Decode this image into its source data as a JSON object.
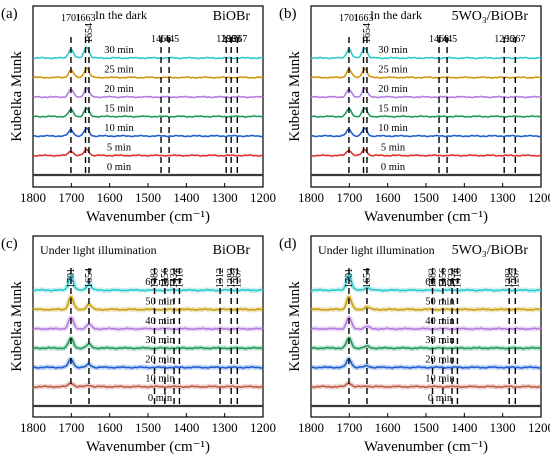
{
  "chart_data": [
    {
      "panel_label": "(a)",
      "condition": "In the dark",
      "sample": "BiOBr",
      "type": "line",
      "xlabel": "Wavenumber (cm⁻¹)",
      "ylabel": "Kubelka Munk",
      "xlim": [
        1800,
        1200
      ],
      "x_ticks": [
        1800,
        1700,
        1600,
        1500,
        1400,
        1300,
        1200
      ],
      "peaks": [
        1701,
        1663,
        1654,
        1466,
        1445,
        1296,
        1283,
        1267
      ],
      "series": [
        {
          "name": "0 min",
          "color": "#3a3a3a",
          "peaks": [
            [
              1701,
              0.0
            ],
            [
              1660,
              0.0
            ]
          ]
        },
        {
          "name": "5 min",
          "color": "#e0302c",
          "peaks": [
            [
              1701,
              0.3
            ],
            [
              1660,
              0.4
            ]
          ]
        },
        {
          "name": "10 min",
          "color": "#1f5fd0",
          "peaks": [
            [
              1701,
              0.4
            ],
            [
              1660,
              0.5
            ]
          ]
        },
        {
          "name": "15 min",
          "color": "#1d9a5c",
          "peaks": [
            [
              1701,
              0.45
            ],
            [
              1660,
              0.55
            ]
          ]
        },
        {
          "name": "20 min",
          "color": "#b37be0",
          "peaks": [
            [
              1701,
              0.5
            ],
            [
              1660,
              0.6
            ]
          ]
        },
        {
          "name": "25 min",
          "color": "#d4950a",
          "peaks": [
            [
              1701,
              0.5
            ],
            [
              1660,
              0.65
            ]
          ]
        },
        {
          "name": "30 min",
          "color": "#2ec8cc",
          "peaks": [
            [
              1701,
              0.6
            ],
            [
              1660,
              0.75
            ]
          ]
        }
      ]
    },
    {
      "panel_label": "(b)",
      "condition": "In the dark",
      "sample": "5WO₃/BiOBr",
      "type": "line",
      "xlabel": "Wavenumber (cm⁻¹)",
      "ylabel": "Kubelka Munk",
      "xlim": [
        1800,
        1200
      ],
      "x_ticks": [
        1800,
        1700,
        1600,
        1500,
        1400,
        1300,
        1200
      ],
      "peaks": [
        1701,
        1663,
        1654,
        1466,
        1445,
        1296,
        1267
      ],
      "series": [
        {
          "name": "0 min",
          "color": "#3a3a3a",
          "peaks": [
            [
              1701,
              0.0
            ],
            [
              1660,
              0.0
            ]
          ]
        },
        {
          "name": "5 min",
          "color": "#e0302c",
          "peaks": [
            [
              1701,
              0.35
            ],
            [
              1660,
              0.4
            ]
          ]
        },
        {
          "name": "10 min",
          "color": "#1f5fd0",
          "peaks": [
            [
              1701,
              0.45
            ],
            [
              1660,
              0.5
            ]
          ]
        },
        {
          "name": "15 min",
          "color": "#1d9a5c",
          "peaks": [
            [
              1701,
              0.5
            ],
            [
              1660,
              0.55
            ]
          ]
        },
        {
          "name": "20 min",
          "color": "#b37be0",
          "peaks": [
            [
              1701,
              0.5
            ],
            [
              1660,
              0.6
            ]
          ]
        },
        {
          "name": "25 min",
          "color": "#d4950a",
          "peaks": [
            [
              1701,
              0.55
            ],
            [
              1660,
              0.6
            ]
          ]
        },
        {
          "name": "30 min",
          "color": "#2ec8cc",
          "peaks": [
            [
              1701,
              0.6
            ],
            [
              1660,
              0.7
            ]
          ]
        }
      ]
    },
    {
      "panel_label": "(c)",
      "condition": "Under light illumination",
      "sample": "BiOBr",
      "type": "line",
      "xlabel": "Wavenumber (cm⁻¹)",
      "ylabel": "Kubelka Munk",
      "xlim": [
        1800,
        1200
      ],
      "x_ticks": [
        1800,
        1700,
        1600,
        1500,
        1400,
        1300,
        1200
      ],
      "peaks": [
        1701,
        1654,
        1483,
        1456,
        1432,
        1418,
        1312,
        1283,
        1267
      ],
      "series": [
        {
          "name": "0 min",
          "color": "#3a3a3a",
          "peaks": [
            [
              1701,
              0.0
            ],
            [
              1654,
              0.0
            ]
          ]
        },
        {
          "name": "10 min",
          "color": "#c05a48",
          "peaks": [
            [
              1701,
              0.25
            ],
            [
              1654,
              0.1
            ]
          ]
        },
        {
          "name": "20 min",
          "color": "#1f5fd0",
          "peaks": [
            [
              1701,
              0.55
            ],
            [
              1654,
              0.2
            ]
          ]
        },
        {
          "name": "30 min",
          "color": "#1d9a5c",
          "peaks": [
            [
              1701,
              0.65
            ],
            [
              1654,
              0.25
            ]
          ]
        },
        {
          "name": "40 min",
          "color": "#b37be0",
          "peaks": [
            [
              1701,
              0.75
            ],
            [
              1654,
              0.3
            ]
          ]
        },
        {
          "name": "50 min",
          "color": "#c8a010",
          "peaks": [
            [
              1701,
              0.85
            ],
            [
              1654,
              0.35
            ]
          ]
        },
        {
          "name": "60 min",
          "color": "#2ec8cc",
          "peaks": [
            [
              1701,
              1.0
            ],
            [
              1654,
              0.4
            ]
          ]
        }
      ]
    },
    {
      "panel_label": "(d)",
      "condition": "Under light illumination",
      "sample": "5WO₃/BiOBr",
      "type": "line",
      "xlabel": "Wavenumber (cm⁻¹)",
      "ylabel": "Kubelka Munk",
      "xlim": [
        1800,
        1200
      ],
      "x_ticks": [
        1800,
        1700,
        1600,
        1500,
        1400,
        1300,
        1200
      ],
      "peaks": [
        1701,
        1654,
        1483,
        1456,
        1432,
        1418,
        1283,
        1267
      ],
      "series": [
        {
          "name": "0 min",
          "color": "#3a3a3a",
          "peaks": [
            [
              1701,
              0.0
            ],
            [
              1654,
              0.0
            ]
          ]
        },
        {
          "name": "10 min",
          "color": "#c05a48",
          "peaks": [
            [
              1701,
              0.25
            ],
            [
              1654,
              0.05
            ]
          ]
        },
        {
          "name": "20 min",
          "color": "#1f5fd0",
          "peaks": [
            [
              1701,
              0.55
            ],
            [
              1654,
              0.1
            ]
          ]
        },
        {
          "name": "30 min",
          "color": "#1d9a5c",
          "peaks": [
            [
              1701,
              0.65
            ],
            [
              1654,
              0.12
            ]
          ]
        },
        {
          "name": "40 min",
          "color": "#b37be0",
          "peaks": [
            [
              1701,
              0.75
            ],
            [
              1654,
              0.15
            ]
          ]
        },
        {
          "name": "50 min",
          "color": "#c8a010",
          "peaks": [
            [
              1701,
              0.85
            ],
            [
              1654,
              0.18
            ]
          ]
        },
        {
          "name": "60 min",
          "color": "#2ec8cc",
          "peaks": [
            [
              1701,
              1.05
            ],
            [
              1654,
              0.2
            ]
          ]
        }
      ]
    }
  ]
}
